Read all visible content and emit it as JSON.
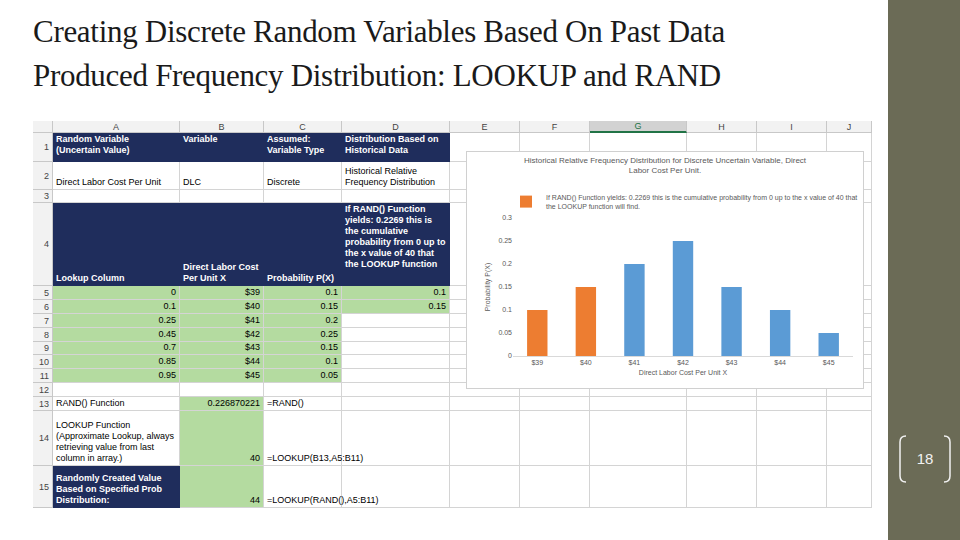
{
  "slide": {
    "title": [
      "Creating Discrete Random Variables Based On Past Data",
      "Produced Frequency Distribution: LOOKUP and RAND"
    ],
    "page_number": "18"
  },
  "spreadsheet": {
    "columns": [
      "A",
      "B",
      "C",
      "D",
      "E",
      "F",
      "G",
      "H",
      "I",
      "J"
    ],
    "selected_column": "G",
    "rows": [
      {
        "n": 1,
        "cells": {
          "A": {
            "text": "Random Variable (Uncertain Value)",
            "style": "header"
          },
          "B": {
            "text": "Variable",
            "style": "header"
          },
          "C": {
            "text": "Assumed: Variable Type",
            "style": "header"
          },
          "D": {
            "text": "Distribution Based on Historical Data",
            "style": "header"
          }
        }
      },
      {
        "n": 2,
        "cells": {
          "A": {
            "text": "Direct Labor Cost Per Unit",
            "style": "plain"
          },
          "B": {
            "text": "DLC",
            "style": "plain"
          },
          "C": {
            "text": "Discrete",
            "style": "plain"
          },
          "D": {
            "text": "Historical Relative Frequency Distribution",
            "style": "plain"
          }
        }
      },
      {
        "n": 3,
        "cells": {}
      },
      {
        "n": 4,
        "cells": {
          "A": {
            "text": "Lookup Column",
            "style": "header"
          },
          "B": {
            "text": "Direct Labor Cost Per Unit X",
            "style": "header"
          },
          "C": {
            "text": "Probability P(X)",
            "style": "header"
          },
          "D": {
            "text": "If RAND() Function yields: 0.2269 this is the cumulative probability from 0 up to the x value of 40 that the LOOKUP function",
            "style": "header"
          }
        }
      },
      {
        "n": 5,
        "cells": {
          "A": {
            "text": "0",
            "style": "input"
          },
          "B": {
            "text": "$39",
            "style": "input"
          },
          "C": {
            "text": "0.1",
            "style": "input"
          },
          "D": {
            "text": "0.1",
            "style": "input"
          }
        }
      },
      {
        "n": 6,
        "cells": {
          "A": {
            "text": "0.1",
            "style": "input"
          },
          "B": {
            "text": "$40",
            "style": "input"
          },
          "C": {
            "text": "0.15",
            "style": "input"
          },
          "D": {
            "text": "0.15",
            "style": "input"
          }
        }
      },
      {
        "n": 7,
        "cells": {
          "A": {
            "text": "0.25",
            "style": "input"
          },
          "B": {
            "text": "$41",
            "style": "input"
          },
          "C": {
            "text": "0.2",
            "style": "input"
          }
        }
      },
      {
        "n": 8,
        "cells": {
          "A": {
            "text": "0.45",
            "style": "input"
          },
          "B": {
            "text": "$42",
            "style": "input"
          },
          "C": {
            "text": "0.25",
            "style": "input"
          }
        }
      },
      {
        "n": 9,
        "cells": {
          "A": {
            "text": "0.7",
            "style": "input"
          },
          "B": {
            "text": "$43",
            "style": "input"
          },
          "C": {
            "text": "0.15",
            "style": "input"
          }
        }
      },
      {
        "n": 10,
        "cells": {
          "A": {
            "text": "0.85",
            "style": "input"
          },
          "B": {
            "text": "$44",
            "style": "input"
          },
          "C": {
            "text": "0.1",
            "style": "input"
          }
        }
      },
      {
        "n": 11,
        "cells": {
          "A": {
            "text": "0.95",
            "style": "input"
          },
          "B": {
            "text": "$45",
            "style": "input"
          },
          "C": {
            "text": "0.05",
            "style": "input"
          }
        }
      },
      {
        "n": 12,
        "cells": {}
      },
      {
        "n": 13,
        "cells": {
          "A": {
            "text": "RAND() Function",
            "style": "plain"
          },
          "B": {
            "text": "0.226870221",
            "style": "input"
          },
          "C": {
            "text": "=RAND()",
            "style": "plain"
          }
        }
      },
      {
        "n": 14,
        "cells": {
          "A": {
            "text": "LOOKUP Function (Approximate Lookup, always retrieving value from last column in array.)",
            "style": "plain"
          },
          "B": {
            "text": "40",
            "style": "input"
          },
          "C": {
            "text": "=LOOKUP(B13,A5:B11)",
            "style": "plain"
          }
        }
      },
      {
        "n": 15,
        "cells": {
          "A": {
            "text": "Randomly Created Value Based on Specified Prob Distribution:",
            "style": "header"
          },
          "B": {
            "text": "44",
            "style": "input"
          },
          "C": {
            "text": "=LOOKUP(RAND(),A5:B11)",
            "style": "plain"
          }
        }
      }
    ]
  },
  "chart_data": {
    "type": "bar",
    "title": "Historical Relative Frequency Distribution for Discrete Uncertain Variable, Direct Labor Cost Per Unit.",
    "x_label": "Direct Labor Cost Per Unit X",
    "y_label": "Probability P(X)",
    "categories": [
      "$39",
      "$40",
      "$41",
      "$42",
      "$43",
      "$44",
      "$45"
    ],
    "series": [
      {
        "name": "If RAND() Function yields: 0.2269 this is the cumulative probability from 0 up to the x value of 40 that the LOOKUP function will find.",
        "values": [
          0.1,
          0.15,
          0.2,
          0.25,
          0.15,
          0.1,
          0.05
        ],
        "colors": [
          "#ed7d31",
          "#ed7d31",
          "#5b9bd5",
          "#5b9bd5",
          "#5b9bd5",
          "#5b9bd5",
          "#5b9bd5"
        ]
      }
    ],
    "ylim": [
      0,
      0.3
    ],
    "yticks": [
      0,
      0.05,
      0.1,
      0.15,
      0.2,
      0.25,
      0.3
    ],
    "grid": false,
    "legend": "top"
  }
}
